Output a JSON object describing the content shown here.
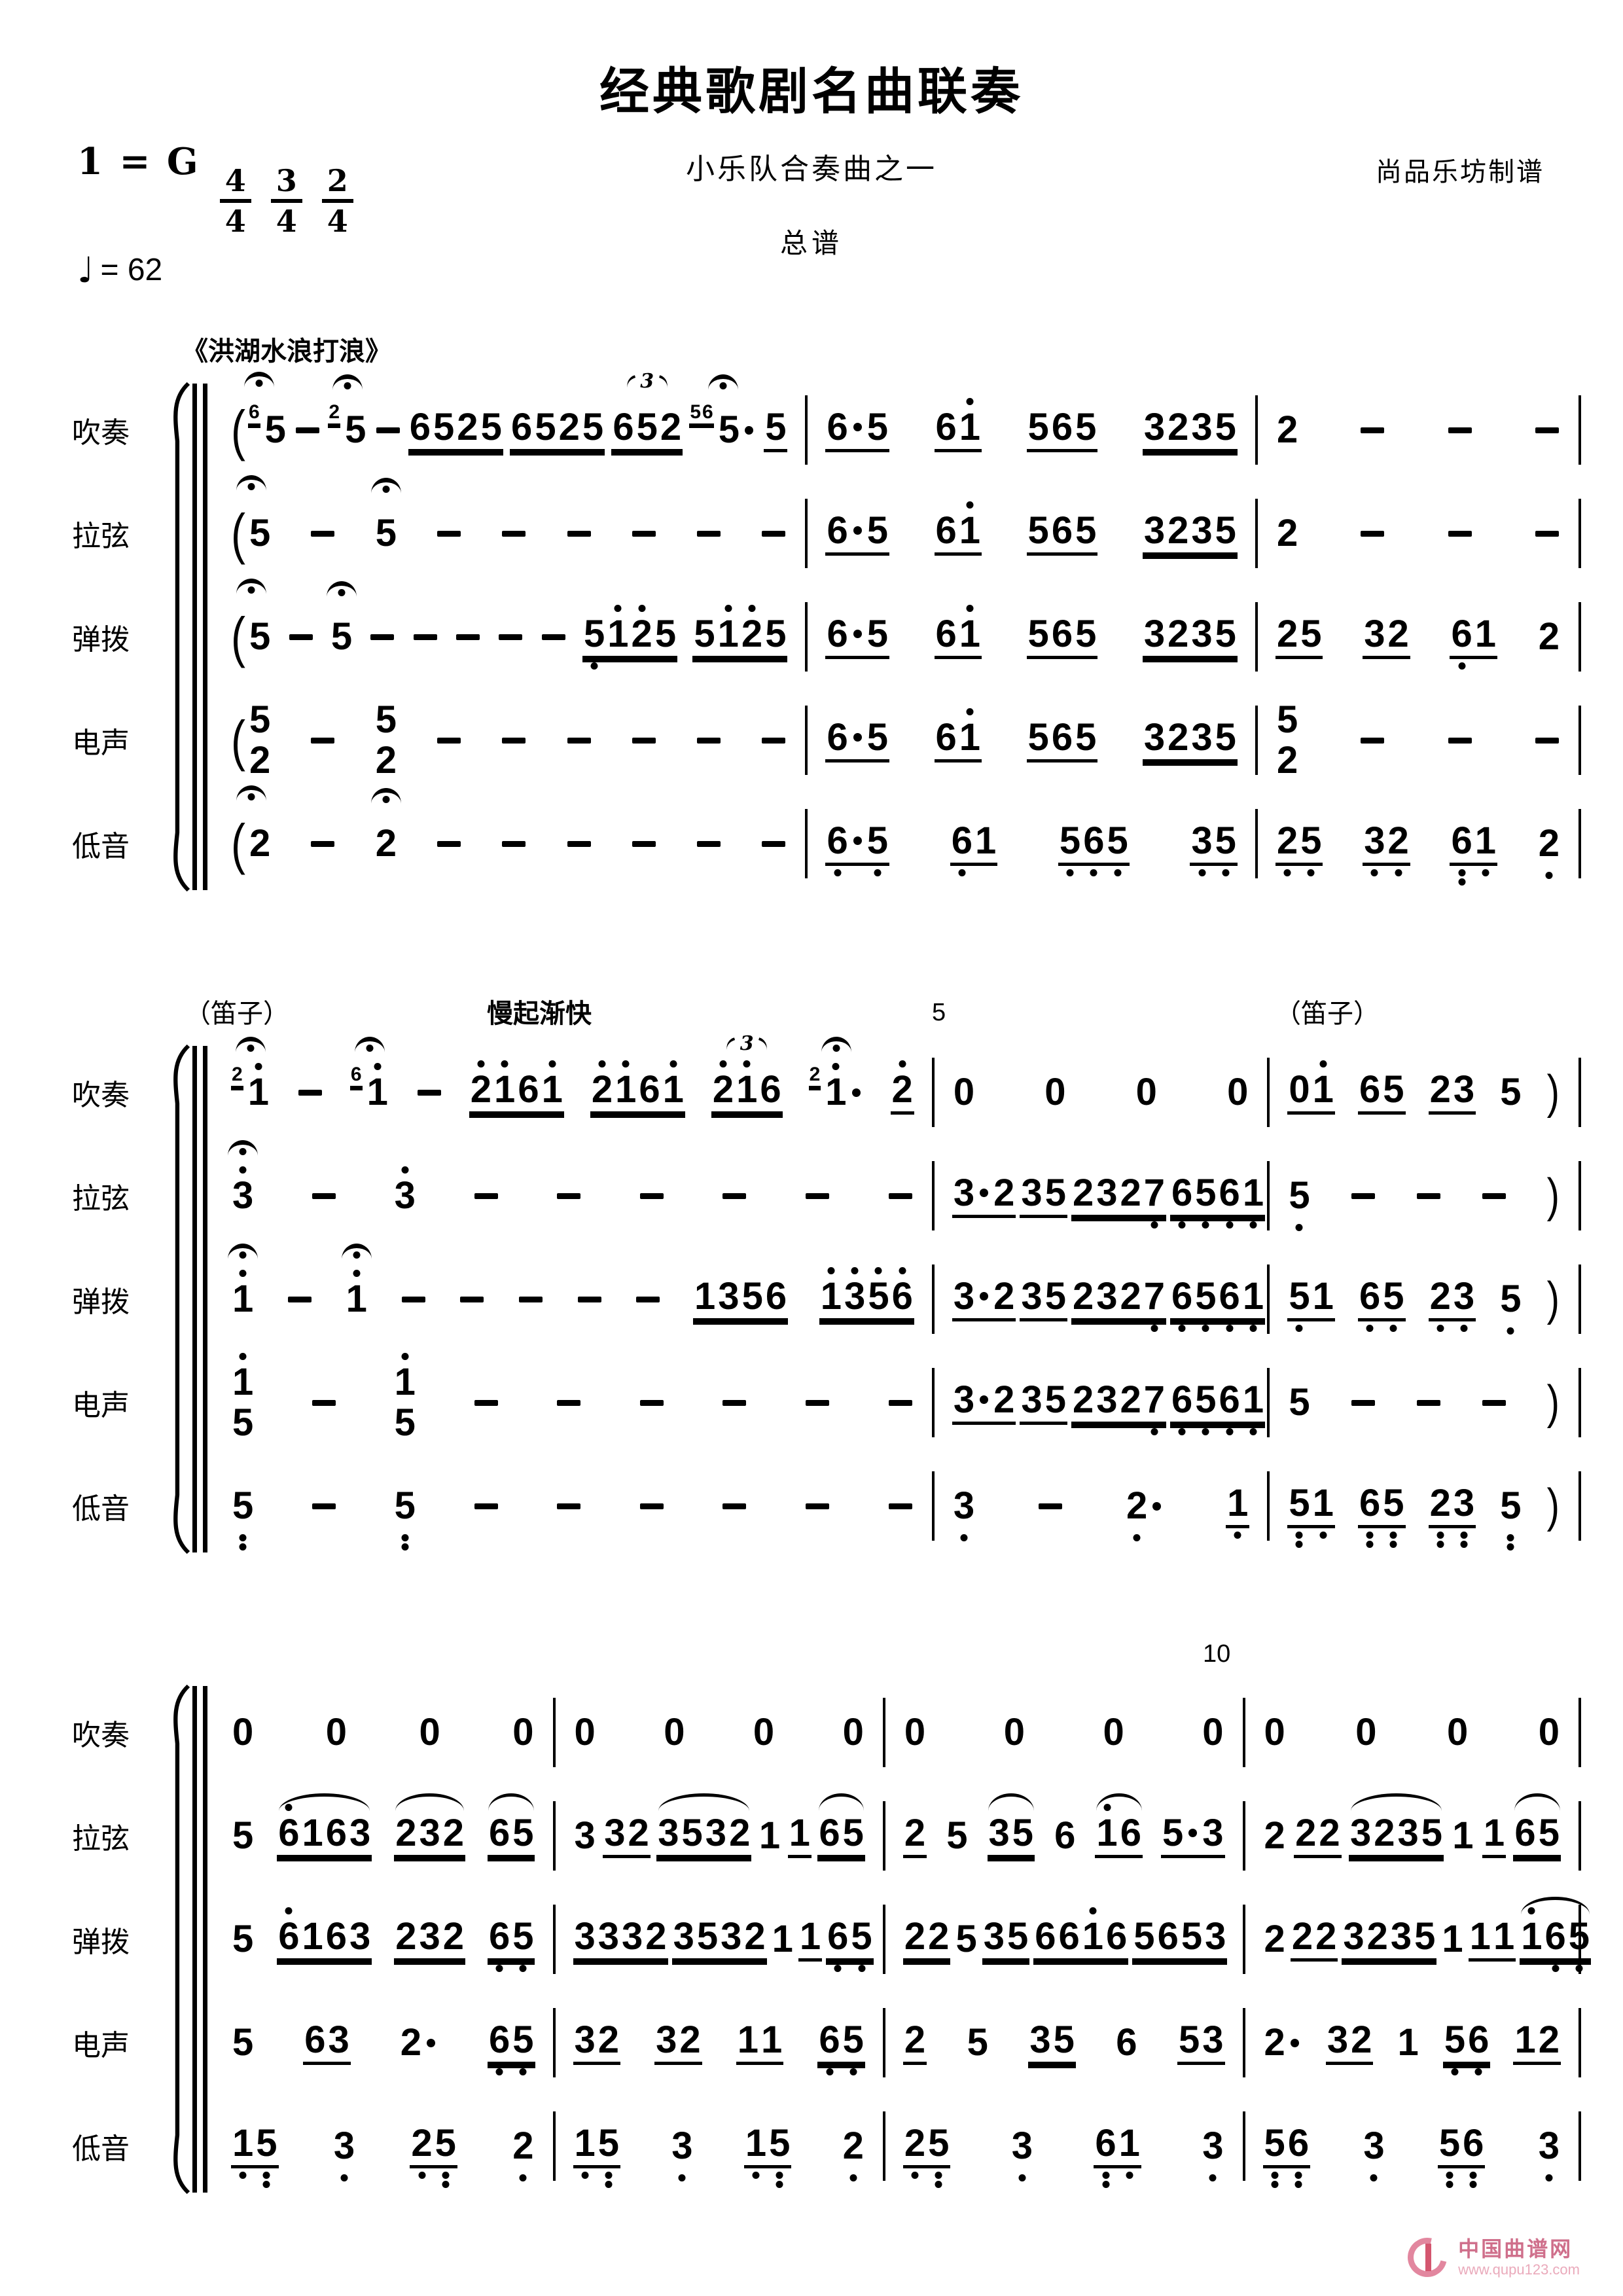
{
  "header": {
    "title": "经典歌剧名曲联奏",
    "subtitle": "小乐队合奏曲之一",
    "score_type": "总谱",
    "credit": "尚品乐坊制谱",
    "key": "1 = G",
    "time_signatures": [
      {
        "num": "4",
        "den": "4"
      },
      {
        "num": "3",
        "den": "4"
      },
      {
        "num": "2",
        "den": "4"
      }
    ],
    "tempo_glyph": "♩",
    "tempo_value": "= 62"
  },
  "parts": [
    "吹奏",
    "拉弦",
    "弹拨",
    "电声",
    "低音"
  ],
  "systems": [
    {
      "annotations": [
        {
          "name": "section-title",
          "text": "《洪湖水浪打浪》"
        }
      ],
      "rows": [
        {
          "part": 0,
          "measures": [
            "({6}^5 - {2}^5 - 6525= 6525= @3652= {56}^5· 5_",
            "6·5_ 61'_ 565_ 3235=",
            "2 - - -"
          ]
        },
        {
          "part": 1,
          "measures": [
            "(^5 - ^5 - - - - - -",
            "6·5_ 61'_ 565_ 3235=",
            "2 - - -"
          ]
        },
        {
          "part": 2,
          "measures": [
            "(^5 - ^5 - - - - - 5,1'2'5= 51'2'5=",
            "6·5_ 61'_ 565_ 3235=",
            "25_ 32_ 6,1_ 2"
          ]
        },
        {
          "part": 3,
          "measures": [
            "(5/2 - 5/2 - - - - - -",
            "6·5_ 61'_ 565_ 3235=",
            "5/2 - - -"
          ]
        },
        {
          "part": 4,
          "measures": [
            "(^2 - ^2 - - - - - -",
            "6,·5,_ 6,1_ 5,6,5,_ 3,5,_",
            "2,5,_ 3,2,_ 6,,1,_ 2,"
          ]
        }
      ]
    },
    {
      "annotations": [
        {
          "name": "instrument-cue-dizi-left",
          "text": "（笛子）"
        },
        {
          "name": "tempo-direction",
          "text": "慢起渐快"
        },
        {
          "name": "measure-number-5",
          "text": "5"
        },
        {
          "name": "instrument-cue-dizi-right",
          "text": "（笛子）"
        }
      ],
      "rows": [
        {
          "part": 0,
          "measures": [
            "{2}^1' - {6}^1' - 2'1'61'= 2'1'61'= @32'1'6= {2}^1'· 2'_",
            "0 0 0 0",
            "01'_ 65_ 23_ 5 )"
          ]
        },
        {
          "part": 1,
          "measures": [
            "^3' - 3' - - - - - -",
            "3·2_ 35_ 2327,= 6,5,6,1,=",
            "5, - - - )"
          ]
        },
        {
          "part": 2,
          "measures": [
            "^1' - ^1' - - - - - 1356= 1'3'5'6'=",
            "3·2_ 35_ 2327,= 6,5,6,1,=",
            "5,1_ 6,5,_ 2,3,_ 5, )"
          ]
        },
        {
          "part": 3,
          "measures": [
            "1'/5 - 1'/5 - - - - - -",
            "3·2_ 35_ 2327,= 6,5,6,1,=",
            "5 - - - )"
          ]
        },
        {
          "part": 4,
          "measures": [
            "5,, - 5,, - - - - - -",
            "3, - 2,· 1,_",
            "5,,1,_ 6,,5,,_ 2,,3,,_ 5,, )"
          ]
        }
      ]
    },
    {
      "annotations": [
        {
          "name": "measure-number-10",
          "text": "10"
        }
      ],
      "rows": [
        {
          "part": 0,
          "measures": [
            "0 0 0 0",
            "0 0 0 0",
            "0 0 0 0",
            "0 0 0 0"
          ]
        },
        {
          "part": 1,
          "measures": [
            "5 ~6'163= ~232= ~65=",
            "3 32_ ~3532= 1 1_ ~65=",
            "2_ 5 ~35= 6 ~1'6_ 5·3_",
            "2 22_ ~3235= 1 1_ ~65="
          ]
        },
        {
          "part": 2,
          "measures": [
            "5 6'163= 232= 6,5,=",
            "3332= 3532= 1 1_ 6,5,=",
            "22= 5 35= 661'6= 5653=",
            "2 22_ 3235= 1 11_ ~1'6,5,="
          ]
        },
        {
          "part": 3,
          "measures": [
            "5 63_ 2· 6,5,=",
            "32_ 32_ 11_ 6,5,=",
            "2_ 5 35= 6 53_",
            "2· 32_ 1 5,6,= 12_"
          ]
        },
        {
          "part": 4,
          "measures": [
            "1,5,,_ 3, 2,5,,_ 2,",
            "1,5,,_ 3, 1,5,,_ 2,",
            "2,5,,_ 3, 6,,1,_ 3,",
            "5,,6,,_ 3, 5,,6,,_ 3,"
          ]
        }
      ]
    }
  ],
  "watermark": {
    "site_name": "中国曲谱网",
    "site_url": "www.qupu123.com",
    "brand_color": "#cf6f8b",
    "brand_color_light": "#eaaabb"
  }
}
